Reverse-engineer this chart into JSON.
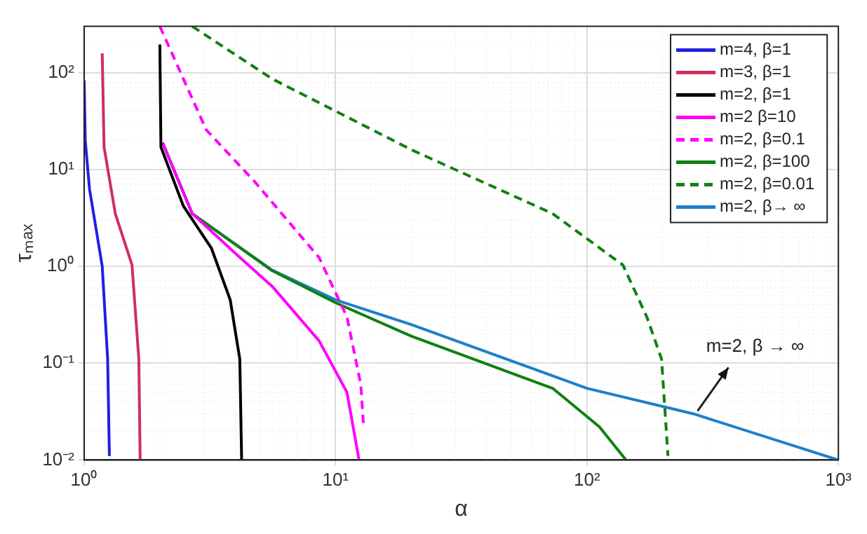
{
  "chart_data": {
    "type": "line",
    "xlabel": "α",
    "ylabel": "τₘₐₓ",
    "log": "xy",
    "grid": true,
    "legend": "top right",
    "xlim": [
      1,
      1000
    ],
    "ylim": [
      0.01,
      300
    ],
    "xticks": [
      {
        "value": 1,
        "label": "10⁰"
      },
      {
        "value": 10,
        "label": "10¹"
      },
      {
        "value": 100,
        "label": "10²"
      },
      {
        "value": 1000,
        "label": "10³"
      }
    ],
    "yticks": [
      {
        "value": 0.01,
        "label": "10⁻²"
      },
      {
        "value": 0.1,
        "label": "10⁻¹"
      },
      {
        "value": 1,
        "label": "10⁰"
      },
      {
        "value": 10,
        "label": "10¹"
      },
      {
        "value": 100,
        "label": "10²"
      }
    ],
    "series": [
      {
        "name": "m=4, β=1",
        "color": "#2020e0",
        "x": [
          1.0,
          1.01,
          1.05,
          1.18,
          1.24,
          1.26
        ],
        "values": [
          83,
          20,
          6.3,
          1,
          0.11,
          0.011
        ]
      },
      {
        "name": "m=3, β=1",
        "color": "#d0305a",
        "x": [
          1.18,
          1.2,
          1.33,
          1.55,
          1.65,
          1.67
        ],
        "values": [
          158,
          17,
          3.5,
          1.03,
          0.11,
          0.01
        ]
      },
      {
        "name": "m=2, β=1",
        "color": "#000000",
        "x": [
          2.0,
          2.02,
          2.48,
          3.21,
          3.81,
          4.16,
          4.23
        ],
        "values": [
          195,
          17,
          4.2,
          1.53,
          0.45,
          0.11,
          0.01
        ]
      },
      {
        "name": "m=2 β=10",
        "color": "#ff00ff",
        "x": [
          2.05,
          2.69,
          4.15,
          5.6,
          8.6,
          11.1,
          12.4
        ],
        "values": [
          18.9,
          3.5,
          1.24,
          0.62,
          0.17,
          0.05,
          0.01
        ]
      },
      {
        "name": "m=2, β=0.1",
        "color": "#ff00ff",
        "line_style": "dashed",
        "x": [
          2.0,
          3.06,
          4.74,
          8.6,
          11.1,
          12.6,
          12.9
        ],
        "values": [
          300,
          25.6,
          7.6,
          1.23,
          0.3,
          0.06,
          0.024
        ]
      },
      {
        "name": "m=2, β=100",
        "color": "#108010",
        "x": [
          2.05,
          2.69,
          5.6,
          10,
          20,
          73,
          112,
          143
        ],
        "values": [
          18.9,
          3.5,
          0.9,
          0.42,
          0.19,
          0.055,
          0.022,
          0.01
        ]
      },
      {
        "name": "m=2, β=0.01",
        "color": "#108010",
        "line_style": "dashed",
        "x": [
          2.69,
          5.6,
          20.3,
          73,
          139,
          173,
          198,
          210
        ],
        "values": [
          300,
          86,
          15.7,
          3.5,
          1.03,
          0.3,
          0.11,
          0.011
        ]
      },
      {
        "name": "m=2, β→ ∞",
        "color": "#1f7fc8",
        "x": [
          2.05,
          2.69,
          5.6,
          10,
          20,
          100,
          265,
          1000
        ],
        "values": [
          18.9,
          3.5,
          0.91,
          0.45,
          0.25,
          0.055,
          0.03,
          0.01
        ]
      }
    ],
    "annotations": [
      {
        "text": "m=2, β → ∞",
        "x": 265,
        "y": 0.03
      }
    ]
  }
}
